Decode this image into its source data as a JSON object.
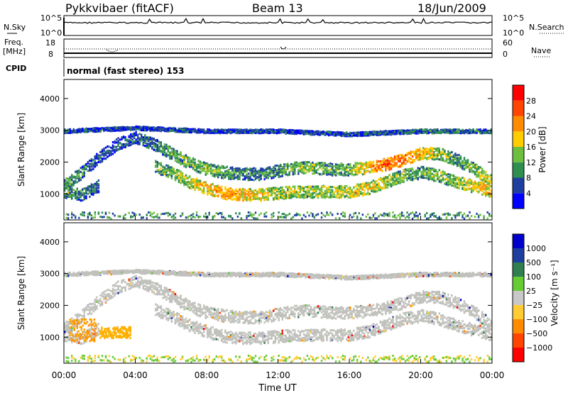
{
  "header": {
    "station": "Pykkvibaer (fitACF)",
    "beam": "Beam 13",
    "date": "18/Jun/2009"
  },
  "status_panels": {
    "nsky_label": "N.Sky",
    "nsearch_label": "N.Search",
    "noise_ticks_left": [
      "10^5",
      "10^0"
    ],
    "noise_ticks_right": [
      "10^5",
      "10^0"
    ],
    "freq_label_1": "Freq.",
    "freq_label_2": "[MHz]",
    "freq_ticks": [
      "18",
      "8"
    ],
    "nave_label": "Nave",
    "nave_ticks": [
      "60",
      "0"
    ],
    "cpid_label": "CPID",
    "cpid_text": "normal (fast stereo) 153"
  },
  "colors": {
    "power_scale": [
      "#0000ff",
      "#1f3fa0",
      "#2f8f4f",
      "#6fbf3f",
      "#ffcc00",
      "#ff8c00",
      "#ff4500",
      "#ff0000"
    ],
    "velocity_scale": [
      "#ff0000",
      "#ff4500",
      "#ff8c00",
      "#ffcc33",
      "#c8c8c8",
      "#66cc33",
      "#2f7f4f",
      "#1f3fa0",
      "#0000cc"
    ],
    "ground_scatter": "#c0c0bc"
  },
  "chart_data": [
    {
      "type": "heatmap",
      "name": "power",
      "title": "",
      "xlabel": "",
      "ylabel": "Slant Range [km]",
      "x_range_hours": [
        0,
        24
      ],
      "ylim": [
        180,
        4600
      ],
      "yticks": [
        "1000",
        "2000",
        "3000",
        "4000"
      ],
      "colorbar_label": "Power [dB]",
      "colorbar_ticks": [
        "4",
        "8",
        "12",
        "16",
        "20",
        "24",
        "28"
      ],
      "colorbar_range": [
        0,
        32
      ],
      "echo_bands": [
        {
          "x": [
            0.0,
            1.0,
            2.0,
            3.0,
            4.0,
            5.0,
            6.0,
            7.0,
            8.0,
            9.0,
            10.0,
            11.0,
            12.0,
            13.0,
            14.0,
            15.0,
            16.0,
            17.0,
            18.0,
            19.0,
            20.0,
            21.0,
            22.0,
            23.0,
            24.0
          ],
          "y": [
            1300,
            1700,
            2200,
            2600,
            2800,
            2600,
            2300,
            2000,
            1800,
            1700,
            1650,
            1650,
            1750,
            1850,
            1850,
            1800,
            1800,
            1850,
            1950,
            2100,
            2300,
            2300,
            2100,
            1800,
            1400
          ],
          "power": [
            12,
            10,
            8,
            8,
            8,
            10,
            12,
            14,
            14,
            12,
            10,
            10,
            12,
            14,
            14,
            12,
            14,
            20,
            26,
            24,
            20,
            14,
            12,
            14,
            18
          ]
        },
        {
          "x": [
            0.0,
            1.0,
            2.0,
            3.0,
            4.0,
            5.0,
            6.0,
            7.0,
            8.0,
            9.0,
            10.0,
            11.0,
            12.0,
            13.0,
            14.0,
            15.0,
            16.0,
            17.0,
            18.0,
            19.0,
            20.0,
            21.0,
            22.0,
            23.0,
            24.0
          ],
          "y": [
            1100,
            1000,
            1300,
            null,
            null,
            1900,
            1700,
            1400,
            1200,
            1050,
            1000,
            1000,
            1050,
            1100,
            1100,
            1100,
            1100,
            1200,
            1400,
            1600,
            1700,
            1600,
            1400,
            1250,
            1100
          ],
          "power": [
            12,
            10,
            8,
            null,
            null,
            12,
            14,
            16,
            20,
            22,
            20,
            18,
            16,
            16,
            14,
            16,
            18,
            18,
            16,
            14,
            12,
            14,
            16,
            18,
            22
          ]
        },
        {
          "x": [
            0.0,
            4.0,
            8.0,
            12.0,
            16.0,
            20.0,
            24.0
          ],
          "y": [
            3000,
            3100,
            3000,
            3000,
            2900,
            3000,
            3000
          ],
          "power": [
            6,
            6,
            6,
            6,
            6,
            8,
            8
          ]
        }
      ]
    },
    {
      "type": "heatmap",
      "name": "velocity",
      "title": "",
      "xlabel": "Time UT",
      "ylabel": "Slant Range [km]",
      "x_range_hours": [
        0,
        24
      ],
      "xticks": [
        "00:00",
        "04:00",
        "08:00",
        "12:00",
        "16:00",
        "20:00",
        "00:00"
      ],
      "ylim": [
        180,
        4600
      ],
      "yticks": [
        "1000",
        "2000",
        "3000",
        "4000"
      ],
      "colorbar_label": "Velocity [m s⁻¹]",
      "colorbar_ticks": [
        "1000",
        "500",
        "100",
        "25",
        "−25",
        "−100",
        "−500",
        "−1000"
      ],
      "regions": [
        {
          "x": [
            0.3,
            1.8
          ],
          "y": [
            900,
            1600
          ],
          "velocity": -300
        },
        {
          "x": [
            2.0,
            3.7
          ],
          "y": [
            1000,
            1350
          ],
          "velocity": -150
        }
      ]
    }
  ]
}
